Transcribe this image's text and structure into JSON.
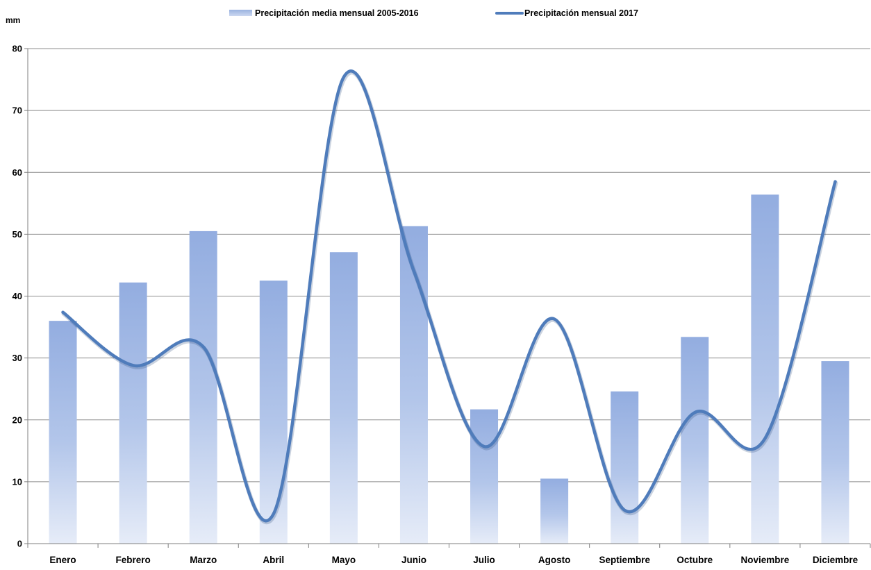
{
  "chart_data": {
    "type": "bar",
    "ylabel": "mm",
    "ylim": [
      0,
      80
    ],
    "yticks": [
      0,
      10,
      20,
      30,
      40,
      50,
      60,
      70,
      80
    ],
    "grid": true,
    "legend_position": "top-center",
    "categories": [
      "Enero",
      "Febrero",
      "Marzo",
      "Abril",
      "Mayo",
      "Junio",
      "Julio",
      "Agosto",
      "Septiembre",
      "Octubre",
      "Noviembre",
      "Diciembre"
    ],
    "series": [
      {
        "name": "Precipitación media mensual 2005-2016",
        "type": "bar",
        "color": "#9ab3e0",
        "values": [
          36.0,
          42.2,
          50.5,
          42.5,
          47.1,
          51.3,
          21.7,
          10.5,
          24.6,
          33.4,
          56.4,
          29.5
        ]
      },
      {
        "name": "Precipitación mensual 2017",
        "type": "line",
        "smooth": true,
        "color": "#4f7cbb",
        "values": [
          37.4,
          28.8,
          31.8,
          4.8,
          75.4,
          44.0,
          15.7,
          36.3,
          5.4,
          21.2,
          17.0,
          58.5
        ]
      }
    ]
  }
}
